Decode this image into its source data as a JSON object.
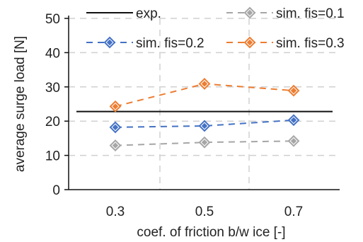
{
  "chart_data": {
    "type": "line",
    "xlabel": "coef. of friction b/w ice [-]",
    "ylabel": "average surge load [N]",
    "categories": [
      "0.3",
      "0.5",
      "0.7"
    ],
    "ylim": [
      0,
      50
    ],
    "yticks": [
      "0",
      "10",
      "20",
      "30",
      "40",
      "50"
    ],
    "grid": true,
    "legend_position": "top",
    "reference_line": {
      "name": "exp.",
      "value": 22.8,
      "color": "#111111"
    },
    "series": [
      {
        "name": "sim. fis=0.1",
        "values": [
          12.9,
          13.8,
          14.2
        ],
        "color": "#a6a6a6"
      },
      {
        "name": "sim. fis=0.2",
        "values": [
          18.2,
          18.6,
          20.3
        ],
        "color": "#4472c4"
      },
      {
        "name": "sim. fis=0.3",
        "values": [
          24.3,
          30.9,
          28.9
        ],
        "color": "#ed7d31"
      }
    ]
  }
}
